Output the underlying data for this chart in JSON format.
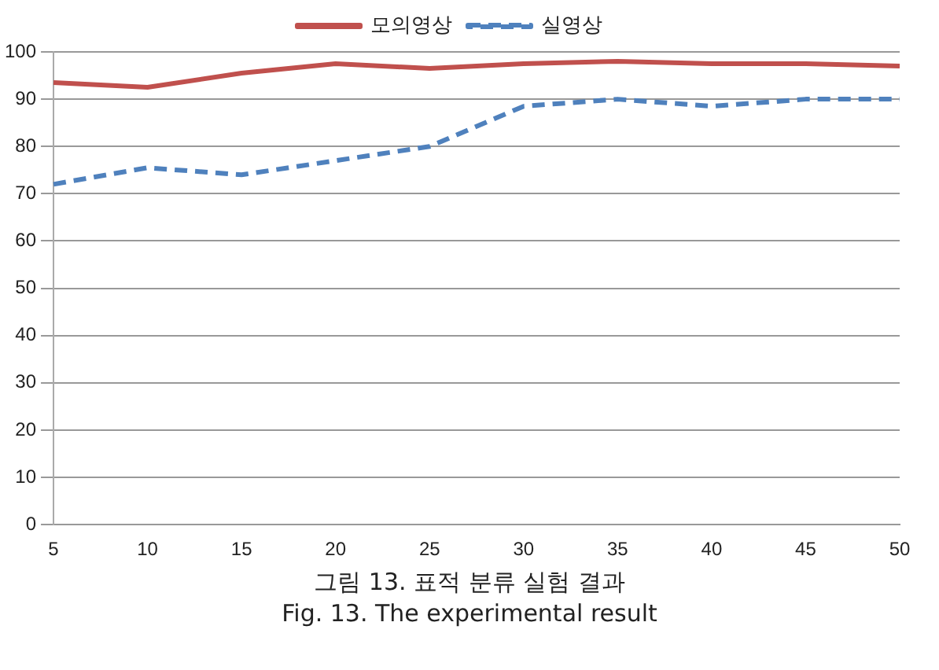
{
  "chart_data": {
    "type": "line",
    "categories": [
      "5",
      "10",
      "15",
      "20",
      "25",
      "30",
      "35",
      "40",
      "45",
      "50"
    ],
    "series": [
      {
        "name": "모의영상",
        "color": "#c0504d",
        "line_style": "solid",
        "values": [
          93.5,
          92.5,
          95.5,
          97.5,
          96.5,
          97.5,
          98,
          97.5,
          97.5,
          97
        ]
      },
      {
        "name": "실영상",
        "color": "#4f81bd",
        "line_style": "dashed",
        "values": [
          72,
          75.5,
          74,
          77,
          80,
          88.5,
          90,
          88.5,
          90,
          90
        ]
      }
    ],
    "ylim": [
      0,
      100
    ],
    "yticks": [
      0,
      10,
      20,
      30,
      40,
      50,
      60,
      70,
      80,
      90,
      100
    ],
    "grid": "y",
    "legend": "top",
    "marker": "none",
    "annotations": [
      "그림 13. 표적 분류 실험 결과",
      "Fig. 13. The experimental result"
    ]
  }
}
